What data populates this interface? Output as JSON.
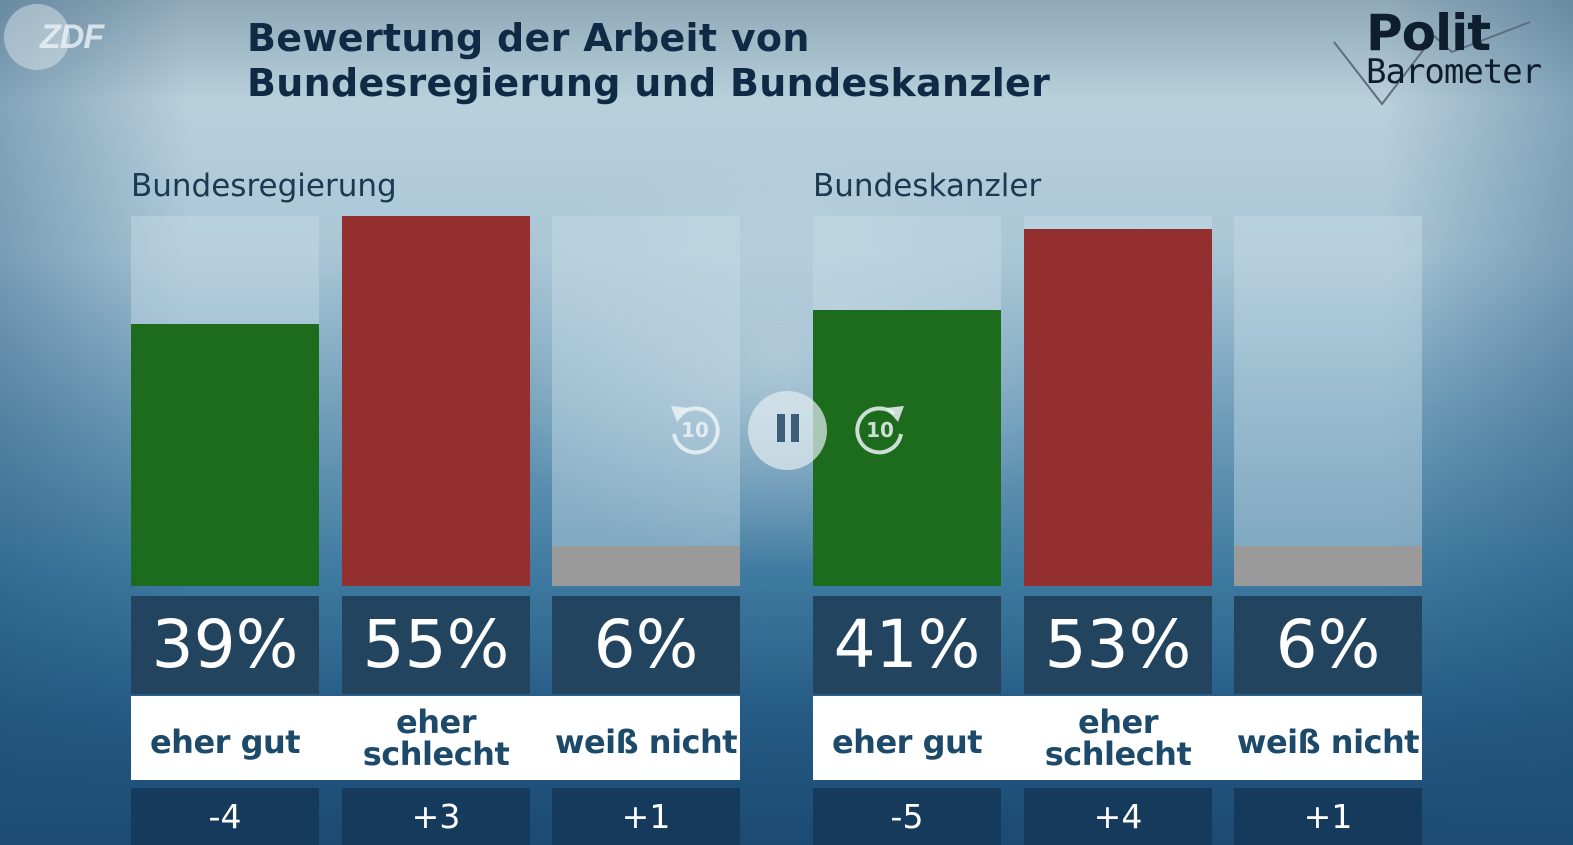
{
  "header": {
    "broadcaster_logo": "ZDF",
    "title_line1": "Bewertung der Arbeit von",
    "title_line2": "Bundesregierung und Bundeskanzler",
    "brand_line1": "Polit",
    "brand_line2": "Barometer"
  },
  "player_controls": {
    "rewind_icon": "rewind-10-icon",
    "rewind_label": "10",
    "pause_icon": "pause-icon",
    "forward_icon": "forward-10-icon",
    "forward_label": "10"
  },
  "colors": {
    "positive": "#1d6b1d",
    "negative": "#93302f",
    "neutral": "#9a9a9a",
    "value_box": "#23445f",
    "delta_box": "#163a5c",
    "label_text": "#1d4a6a"
  },
  "chart_data": [
    {
      "type": "bar",
      "title": "Bundesregierung",
      "categories": [
        "eher gut",
        "eher schlecht",
        "weiß nicht"
      ],
      "category_lines": [
        [
          "eher gut"
        ],
        [
          "eher",
          "schlecht"
        ],
        [
          "weiß nicht"
        ]
      ],
      "values": [
        39,
        55,
        6
      ],
      "value_labels": [
        "39%",
        "55%",
        "6%"
      ],
      "changes": [
        "-4",
        "+3",
        "+1"
      ],
      "bar_colors": [
        "#1d6b1d",
        "#93302f",
        "#9a9a9a"
      ],
      "unit": "%",
      "ylim": [
        0,
        55
      ],
      "grid": false
    },
    {
      "type": "bar",
      "title": "Bundeskanzler",
      "categories": [
        "eher gut",
        "eher schlecht",
        "weiß nicht"
      ],
      "category_lines": [
        [
          "eher gut"
        ],
        [
          "eher",
          "schlecht"
        ],
        [
          "weiß nicht"
        ]
      ],
      "values": [
        41,
        53,
        6
      ],
      "value_labels": [
        "41%",
        "53%",
        "6%"
      ],
      "changes": [
        "-5",
        "+4",
        "+1"
      ],
      "bar_colors": [
        "#1d6b1d",
        "#93302f",
        "#9a9a9a"
      ],
      "unit": "%",
      "ylim": [
        0,
        55
      ],
      "grid": false
    }
  ]
}
